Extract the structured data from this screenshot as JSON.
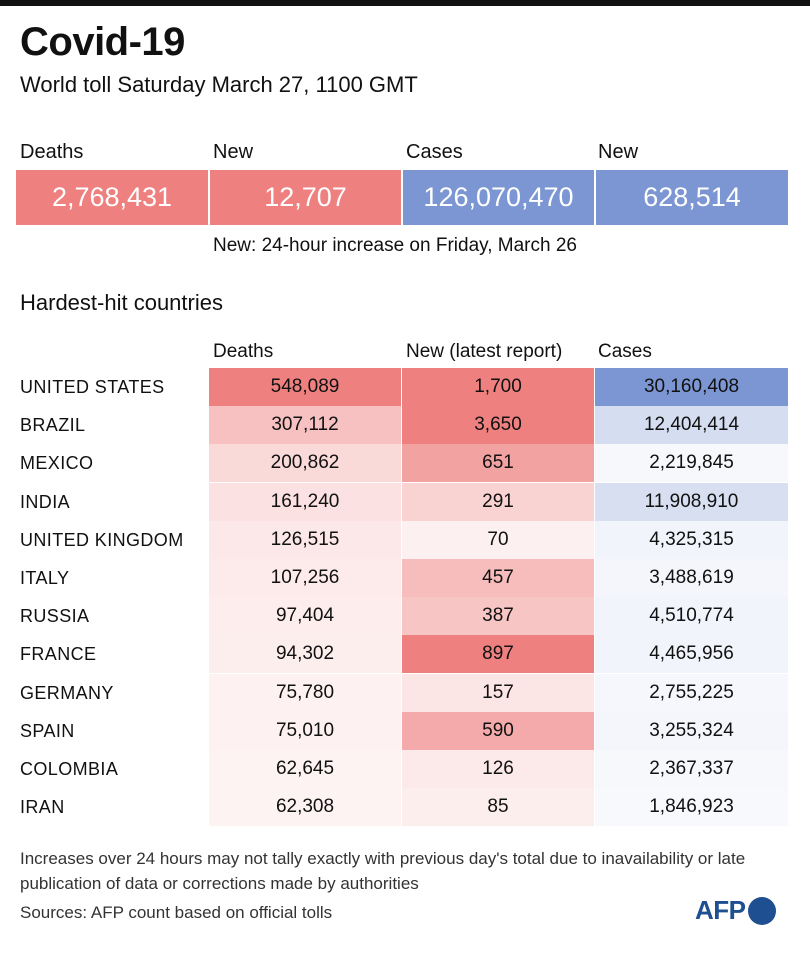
{
  "title": "Covid-19",
  "subtitle": "World toll Saturday March 27,  1100 GMT",
  "summary": {
    "deaths_label": "Deaths",
    "deaths_value": "2,768,431",
    "new_deaths_label": "New",
    "new_deaths_value": "12,707",
    "cases_label": "Cases",
    "cases_value": "126,070,470",
    "new_cases_label": "New",
    "new_cases_value": "628,514",
    "note": "New: 24-hour increase on Friday, March 26"
  },
  "colors": {
    "deaths_accent": "#ef8080",
    "cases_accent": "#7b96d2"
  },
  "table_title": "Hardest-hit countries",
  "chart_data": {
    "type": "table",
    "title": "Hardest-hit countries",
    "columns": [
      "Deaths",
      "New (latest report)",
      "Cases"
    ],
    "rows": [
      {
        "country": "UNITED STATES",
        "deaths": 548089,
        "new": 1700,
        "cases": 30160408
      },
      {
        "country": "BRAZIL",
        "deaths": 307112,
        "new": 3650,
        "cases": 12404414
      },
      {
        "country": "MEXICO",
        "deaths": 200862,
        "new": 651,
        "cases": 2219845
      },
      {
        "country": "INDIA",
        "deaths": 161240,
        "new": 291,
        "cases": 11908910
      },
      {
        "country": "UNITED KINGDOM",
        "deaths": 126515,
        "new": 70,
        "cases": 4325315
      },
      {
        "country": "ITALY",
        "deaths": 107256,
        "new": 457,
        "cases": 3488619
      },
      {
        "country": "RUSSIA",
        "deaths": 97404,
        "new": 387,
        "cases": 4510774
      },
      {
        "country": "FRANCE",
        "deaths": 94302,
        "new": 897,
        "cases": 4465956
      },
      {
        "country": "GERMANY",
        "deaths": 75780,
        "new": 157,
        "cases": 2755225
      },
      {
        "country": "SPAIN",
        "deaths": 75010,
        "new": 590,
        "cases": 3255324
      },
      {
        "country": "COLOMBIA",
        "deaths": 62645,
        "new": 126,
        "cases": 2367337
      },
      {
        "country": "IRAN",
        "deaths": 62308,
        "new": 85,
        "cases": 1846923
      }
    ]
  },
  "footnote": "Increases over 24 hours may not tally exactly with previous day's total due to inavailability or late publication of data or corrections made by authorities",
  "sources": "Sources: AFP count based on official tolls",
  "logo_text": "AFP"
}
